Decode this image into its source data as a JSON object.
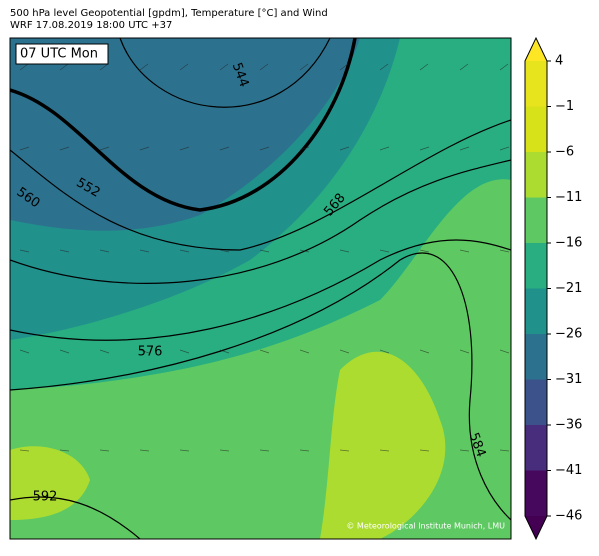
{
  "header": {
    "title": "500 hPa level Geopotential [gpdm], Temperature [°C] and Wind",
    "subtitle": "WRF 17.08.2019 18:00 UTC +37"
  },
  "map": {
    "time_label": "07 UTC Mon",
    "credit": "© Meteorological Institute Munich, LMU",
    "contour_labels": [
      544,
      552,
      560,
      568,
      576,
      584,
      592
    ]
  },
  "colorbar": {
    "ticks": [
      4,
      {
        "value": -1,
        "label": "−1"
      },
      {
        "value": -6,
        "label": "−6"
      },
      {
        "value": -11,
        "label": "−11"
      },
      {
        "value": -16,
        "label": "−16"
      },
      {
        "value": -21,
        "label": "−21"
      },
      {
        "value": -26,
        "label": "−26"
      },
      {
        "value": -31,
        "label": "−31"
      },
      {
        "value": -36,
        "label": "−36"
      },
      {
        "value": -41,
        "label": "−41"
      },
      {
        "value": -46,
        "label": "−46"
      }
    ],
    "under_color": "#440154",
    "over_color": "#fde725",
    "colors": [
      "#46085c",
      "#472d7b",
      "#3b528b",
      "#2c728e",
      "#21918c",
      "#28ae80",
      "#5ec962",
      "#addc30",
      "#d8e219",
      "#e7e41d"
    ]
  }
}
